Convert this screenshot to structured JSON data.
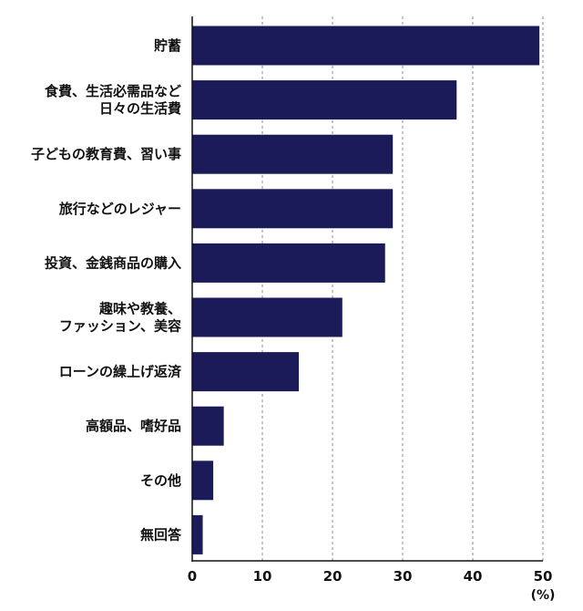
{
  "chart_data": {
    "type": "bar",
    "orientation": "horizontal",
    "categories": [
      [
        "貯蓄"
      ],
      [
        "食費、生活必需品など",
        "日々の生活費"
      ],
      [
        "子どもの教育費、習い事"
      ],
      [
        "旅行などのレジャー"
      ],
      [
        "投資、金銭商品の購入"
      ],
      [
        "趣味や教養、",
        "ファッション、美容"
      ],
      [
        "ローンの繰上げ返済"
      ],
      [
        "高額品、嗜好品"
      ],
      [
        "その他"
      ],
      [
        "無回答"
      ]
    ],
    "values": [
      49.5,
      37.7,
      28.6,
      28.6,
      27.5,
      21.4,
      15.2,
      4.5,
      3.0,
      1.5
    ],
    "xlim": [
      0,
      50
    ],
    "xticks": [
      "0",
      "10",
      "20",
      "30",
      "40",
      "50"
    ],
    "unit": "(%)",
    "grid": "vertical dashed",
    "colors": {
      "bar": "#1b1b5a",
      "axis": "#111111",
      "grid": "#8c8c8c"
    }
  }
}
